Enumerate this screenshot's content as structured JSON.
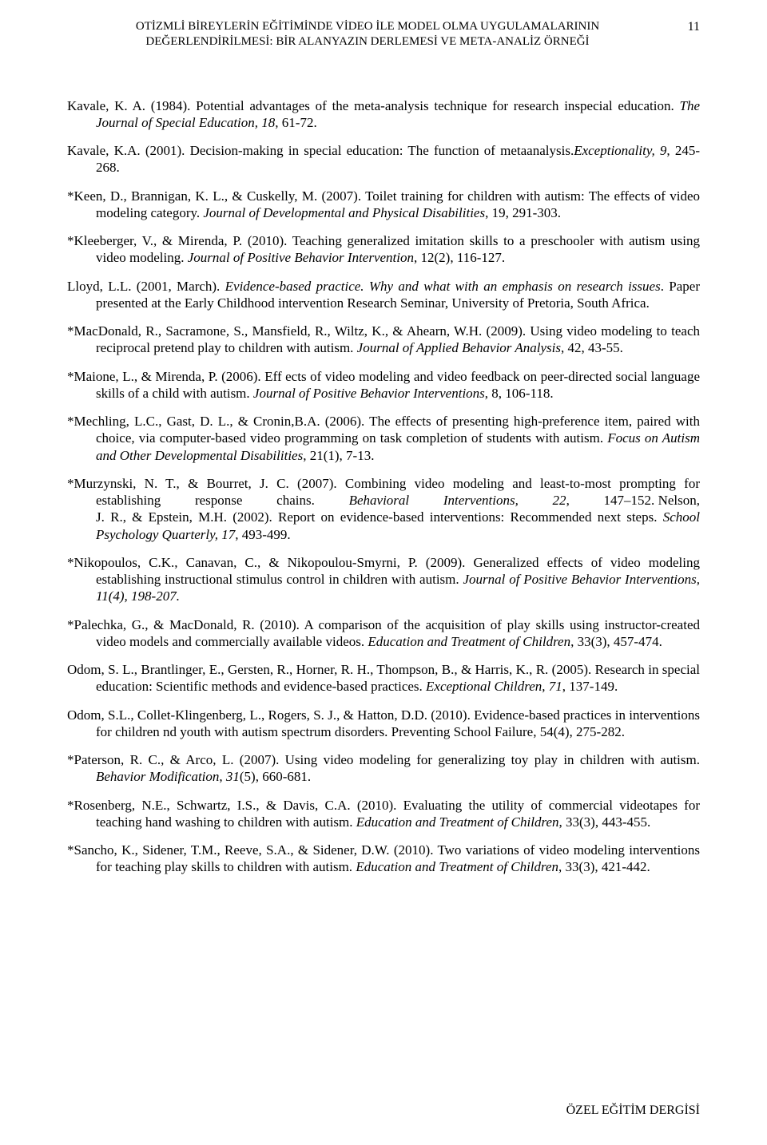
{
  "header": {
    "title_line1": "OTİZMLİ BİREYLERİN EĞİTİMİNDE VİDEO İLE MODEL OLMA UYGULAMALARININ",
    "title_line2": "DEĞERLENDİRİLMESİ: BİR ALANYAZIN DERLEMESİ VE META-ANALİZ ÖRNEĞİ",
    "page_number": "11"
  },
  "refs": [
    {
      "html": "Kavale, K. A. (1984). Potential advantages of the meta-analysis technique for research inspecial education. <span class=\"i\">The Journal of Special Education, 18</span>, 61-72."
    },
    {
      "html": "Kavale, K.A. (2001). Decision-making in special education: The function of metaanalysis.<span class=\"i\">Exceptionality, 9</span>, 245-268."
    },
    {
      "html": "*Keen, D., Brannigan, K. L., & Cuskelly, M. (2007). Toilet training for children with autism: The effects of video modeling category. <span class=\"i\">Journal of Developmental and Physical Disabilities</span>, 19, 291-303."
    },
    {
      "html": "*Kleeberger, V., & Mirenda, P. (2010). Teaching generalized imitation skills to a preschooler with autism using video modeling. <span class=\"i\">Journal of Positive Behavior Intervention</span>, 12(2), 116-127."
    },
    {
      "html": "Lloyd, L.L. (2001, March). <span class=\"i\">Evidence-based practice. Why and what with an emphasis on research issues</span>. Paper presented at the Early Childhood intervention Research Seminar, University of Pretoria, South Africa."
    },
    {
      "html": "*MacDonald, R., Sacramone, S., Mansfield, R., Wiltz, K., & Ahearn, W.H. (2009). Using video modeling to teach reciprocal pretend play to children with autism. <span class=\"i\">Journal of Applied Behavior Analysis</span>, 42, 43-55."
    },
    {
      "html": "*Maione, L., & Mirenda, P. (2006). Eff ects of video modeling and video feedback on peer-directed social language skills of a child with autism. <span class=\"i\">Journal of Positive Behavior Interventions</span>, 8, 106-118."
    },
    {
      "html": "*Mechling, L.C., Gast, D. L., & Cronin,B.A. (2006). The effects of presenting high-preference item, paired with choice, via computer-based video programming on task completion of students with autism. <span class=\"i\">Focus on Autism and Other Developmental Disabilities</span>, 21(1), 7-13."
    },
    {
      "html": "*Murzynski, N. T., & Bourret, J. C. (2007). Combining video modeling and least-to-most prompting for establishing&nbsp;&nbsp;&nbsp;&nbsp;&nbsp;&nbsp;&nbsp;&nbsp;&nbsp;&nbsp;response&nbsp;&nbsp;&nbsp;&nbsp;&nbsp;&nbsp;&nbsp;&nbsp;&nbsp;&nbsp;chains.&nbsp;&nbsp;&nbsp;&nbsp;&nbsp;&nbsp;&nbsp;&nbsp;&nbsp;&nbsp;<span class=\"i\">Behavioral&nbsp;&nbsp;&nbsp;&nbsp;&nbsp;&nbsp;&nbsp;&nbsp;&nbsp;&nbsp;Interventions,&nbsp;&nbsp;&nbsp;&nbsp;&nbsp;&nbsp;&nbsp;&nbsp;&nbsp;&nbsp;22</span>,&nbsp;&nbsp;&nbsp;&nbsp;&nbsp;&nbsp;&nbsp;&nbsp;&nbsp;&nbsp;147–152. Nelson, J. R., & Epstein, M.H. (2002). Report on evidence-based interventions: Recommended next steps. <span class=\"i\">School Psychology Quarterly, 17</span>, 493-499."
    },
    {
      "html": "*Nikopoulos, C.K., Canavan, C., & Nikopoulou-Smyrni, P. (2009). Generalized effects of video modeling establishing instructional stimulus control in children with autism. <span class=\"i\">Journal of Positive Behavior Interventions, 11(4), 198-207.</span>"
    },
    {
      "html": "*Palechka, G., &  MacDonald, R. (2010).  A comparison of the acquisition of play skills using instructor-created video models and commercially available videos. <span class=\"i\">Education and Treatment of Children</span>, 33(3), 457-474."
    },
    {
      "html": "Odom, S. L., Brantlinger, E., Gersten, R., Horner, R. H., Thompson, B., & Harris, K., R. (2005). Research in special education: Scientific methods and evidence-based practices. <span class=\"i\">Exceptional Children, 71</span>, 137-149."
    },
    {
      "html": "Odom, S.L., Collet-Klingenberg, L., Rogers, S. J., & Hatton, D.D. (2010). Evidence-based practices in interventions for children nd youth with autism spectrum disorders. Preventing School Failure, 54(4), 275-282."
    },
    {
      "html": "*Paterson, R. C., & Arco, L. (2007). Using video modeling for generalizing toy play in children with autism. <span class=\"i\">Behavior Modification</span>, <span class=\"i\">31</span>(5), 660-681."
    },
    {
      "html": "*Rosenberg, N.E., Schwartz, I.S., & Davis, C.A. (2010). Evaluating the utility of commercial videotapes for teaching hand washing to children with autism. <span class=\"i\">Education and Treatment of Children</span>, 33(3), 443-455."
    },
    {
      "html": "*Sancho, K., Sidener, T.M., Reeve, S.A., & Sidener, D.W. (2010).  Two variations of video modeling interventions for teaching play skills to children with autism. <span class=\"i\">Education and Treatment of Children</span>, 33(3), 421-442."
    }
  ],
  "footer": {
    "journal": "ÖZEL EĞİTİM DERGİSİ"
  }
}
